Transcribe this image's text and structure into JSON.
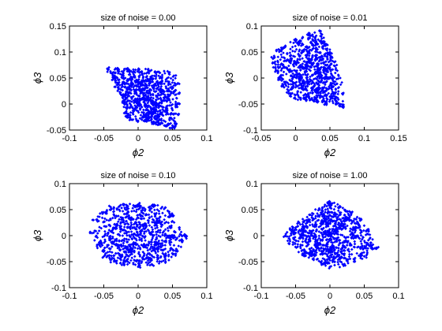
{
  "chart_data": [
    {
      "type": "scatter",
      "title": "size of noise =  0.00",
      "xlabel": "ϕ2",
      "ylabel": "ϕ3",
      "xlim": [
        -0.1,
        0.1
      ],
      "ylim": [
        -0.05,
        0.15
      ],
      "xticks": [
        "-0.1",
        "-0.05",
        "0",
        "0.05",
        "0.1"
      ],
      "yticks": [
        "-0.05",
        "0",
        "0.05",
        "0.1",
        "0.15"
      ],
      "marker_color": "#0000ff",
      "grid": false,
      "points": [
        [
          -0.045,
          0.068
        ],
        [
          -0.04,
          0.06
        ],
        [
          -0.035,
          0.05
        ],
        [
          -0.03,
          0.04
        ],
        [
          -0.025,
          0.028
        ],
        [
          -0.022,
          0.015
        ],
        [
          -0.02,
          0.0
        ],
        [
          -0.018,
          -0.015
        ],
        [
          -0.015,
          -0.025
        ],
        [
          -0.01,
          -0.03
        ],
        [
          0.0,
          -0.032
        ],
        [
          0.01,
          -0.033
        ],
        [
          0.02,
          -0.035
        ],
        [
          0.03,
          -0.038
        ],
        [
          0.04,
          -0.042
        ],
        [
          0.05,
          -0.045
        ],
        [
          0.055,
          -0.04
        ],
        [
          0.058,
          -0.02
        ],
        [
          0.06,
          0.0
        ],
        [
          0.06,
          0.02
        ],
        [
          0.058,
          0.04
        ],
        [
          0.055,
          0.055
        ],
        [
          0.045,
          0.06
        ],
        [
          0.03,
          0.062
        ],
        [
          0.015,
          0.065
        ],
        [
          0.0,
          0.066
        ],
        [
          -0.015,
          0.067
        ],
        [
          -0.03,
          0.068
        ],
        [
          -0.01,
          0.045
        ],
        [
          0.005,
          0.04
        ],
        [
          0.02,
          0.035
        ],
        [
          0.035,
          0.025
        ],
        [
          0.045,
          0.01
        ],
        [
          0.01,
          0.01
        ],
        [
          0.025,
          0.0
        ],
        [
          0.04,
          -0.015
        ],
        [
          -0.005,
          0.02
        ],
        [
          0.015,
          -0.02
        ],
        [
          0.03,
          -0.025
        ],
        [
          0.05,
          0.03
        ],
        [
          0.0,
          0.0
        ],
        [
          0.02,
          0.05
        ],
        [
          -0.02,
          0.04
        ],
        [
          0.035,
          0.045
        ]
      ]
    },
    {
      "type": "scatter",
      "title": "size of noise =  0.01",
      "xlabel": "ϕ2",
      "ylabel": "ϕ3",
      "xlim": [
        -0.05,
        0.15
      ],
      "ylim": [
        -0.1,
        0.1
      ],
      "xticks": [
        "-0.05",
        "0",
        "0.05",
        "0.1",
        "0.15"
      ],
      "yticks": [
        "-0.1",
        "-0.05",
        "0",
        "0.05",
        "0.1"
      ],
      "marker_color": "#0000ff",
      "grid": false,
      "points": [
        [
          -0.035,
          0.04
        ],
        [
          -0.03,
          0.02
        ],
        [
          -0.025,
          0.0
        ],
        [
          -0.02,
          -0.015
        ],
        [
          -0.01,
          -0.03
        ],
        [
          0.0,
          -0.04
        ],
        [
          0.015,
          -0.042
        ],
        [
          0.03,
          -0.045
        ],
        [
          0.045,
          -0.05
        ],
        [
          0.06,
          -0.05
        ],
        [
          0.07,
          -0.055
        ],
        [
          0.068,
          -0.03
        ],
        [
          0.065,
          0.0
        ],
        [
          0.06,
          0.025
        ],
        [
          0.05,
          0.05
        ],
        [
          0.04,
          0.07
        ],
        [
          0.035,
          0.09
        ],
        [
          0.02,
          0.085
        ],
        [
          0.0,
          0.075
        ],
        [
          -0.015,
          0.06
        ],
        [
          -0.025,
          0.055
        ],
        [
          0.0,
          0.03
        ],
        [
          0.015,
          0.02
        ],
        [
          0.03,
          0.01
        ],
        [
          0.045,
          0.0
        ],
        [
          0.01,
          -0.01
        ],
        [
          0.025,
          -0.02
        ],
        [
          0.04,
          -0.025
        ],
        [
          0.05,
          0.02
        ],
        [
          0.02,
          0.05
        ],
        [
          0.035,
          0.04
        ],
        [
          0.005,
          0.0
        ],
        [
          -0.01,
          0.015
        ],
        [
          0.055,
          -0.035
        ],
        [
          0.03,
          0.07
        ],
        [
          0.045,
          0.065
        ]
      ]
    },
    {
      "type": "scatter",
      "title": "size of noise =  0.10",
      "xlabel": "ϕ2",
      "ylabel": "ϕ3",
      "xlim": [
        -0.1,
        0.1
      ],
      "ylim": [
        -0.1,
        0.1
      ],
      "xticks": [
        "-0.1",
        "-0.05",
        "0",
        "0.05",
        "0.1"
      ],
      "yticks": [
        "-0.1",
        "-0.05",
        "0",
        "0.05",
        "0.1"
      ],
      "marker_color": "#0000ff",
      "grid": false,
      "points": [
        [
          -0.07,
          0.005
        ],
        [
          -0.065,
          0.03
        ],
        [
          -0.06,
          -0.02
        ],
        [
          -0.05,
          0.045
        ],
        [
          -0.05,
          -0.04
        ],
        [
          -0.04,
          0.055
        ],
        [
          -0.035,
          -0.05
        ],
        [
          -0.02,
          0.06
        ],
        [
          -0.02,
          -0.055
        ],
        [
          0.0,
          0.06
        ],
        [
          0.0,
          -0.06
        ],
        [
          0.02,
          0.058
        ],
        [
          0.02,
          -0.055
        ],
        [
          0.035,
          0.055
        ],
        [
          0.04,
          -0.05
        ],
        [
          0.05,
          0.04
        ],
        [
          0.055,
          -0.035
        ],
        [
          0.06,
          0.015
        ],
        [
          0.065,
          -0.01
        ],
        [
          0.07,
          0.0
        ],
        [
          -0.03,
          0.02
        ],
        [
          -0.03,
          -0.02
        ],
        [
          -0.01,
          0.03
        ],
        [
          -0.01,
          -0.03
        ],
        [
          0.01,
          0.02
        ],
        [
          0.01,
          -0.02
        ],
        [
          0.03,
          0.025
        ],
        [
          0.03,
          -0.025
        ],
        [
          0.0,
          0.0
        ],
        [
          -0.045,
          0.0
        ],
        [
          0.045,
          0.0
        ],
        [
          -0.015,
          0.045
        ],
        [
          0.015,
          -0.045
        ],
        [
          0.025,
          0.04
        ],
        [
          -0.025,
          -0.04
        ]
      ]
    },
    {
      "type": "scatter",
      "title": "size of noise =  1.00",
      "xlabel": "ϕ2",
      "ylabel": "ϕ3",
      "xlim": [
        -0.1,
        0.1
      ],
      "ylim": [
        -0.1,
        0.1
      ],
      "xticks": [
        "-0.1",
        "-0.05",
        "0",
        "0.05",
        "0.1"
      ],
      "yticks": [
        "-0.1",
        "-0.05",
        "0",
        "0.05",
        "0.1"
      ],
      "marker_color": "#0000ff",
      "grid": false,
      "points": [
        [
          -0.065,
          0.0
        ],
        [
          -0.06,
          -0.015
        ],
        [
          -0.055,
          0.01
        ],
        [
          -0.045,
          0.025
        ],
        [
          -0.04,
          -0.035
        ],
        [
          -0.03,
          0.04
        ],
        [
          -0.025,
          -0.045
        ],
        [
          -0.015,
          0.05
        ],
        [
          -0.01,
          -0.055
        ],
        [
          0.0,
          0.065
        ],
        [
          0.0,
          -0.06
        ],
        [
          0.015,
          0.055
        ],
        [
          0.02,
          -0.058
        ],
        [
          0.03,
          0.045
        ],
        [
          0.035,
          -0.05
        ],
        [
          0.045,
          0.03
        ],
        [
          0.05,
          -0.04
        ],
        [
          0.055,
          0.01
        ],
        [
          0.06,
          -0.02
        ],
        [
          0.068,
          -0.025
        ],
        [
          -0.02,
          0.02
        ],
        [
          -0.02,
          -0.02
        ],
        [
          0.0,
          0.03
        ],
        [
          0.0,
          -0.03
        ],
        [
          0.02,
          0.02
        ],
        [
          0.02,
          -0.02
        ],
        [
          0.0,
          0.0
        ],
        [
          -0.035,
          0.0
        ],
        [
          0.035,
          0.0
        ],
        [
          -0.01,
          0.04
        ],
        [
          0.01,
          -0.04
        ],
        [
          0.025,
          0.035
        ],
        [
          -0.025,
          -0.03
        ],
        [
          0.04,
          0.015
        ],
        [
          -0.04,
          0.012
        ]
      ]
    }
  ]
}
